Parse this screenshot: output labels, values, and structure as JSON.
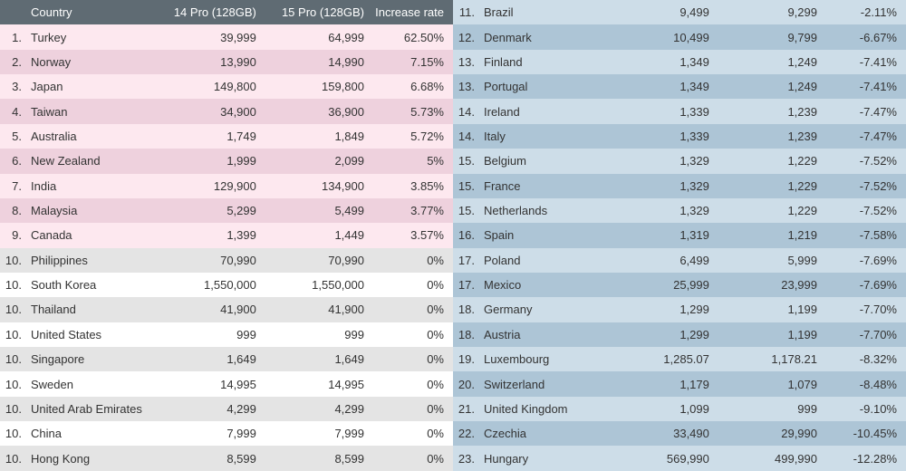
{
  "header": {
    "rank": "",
    "country": "Country",
    "p14": "14 Pro (128GB)",
    "p15": "15 Pro (128GB)",
    "rate": "Increase rate"
  },
  "colors": {
    "header_bg": "#5f6b73",
    "header_fg": "#ffffff",
    "pink_light": "#fde8ef",
    "pink_dark": "#eed1dd",
    "gray_light": "#ffffff",
    "gray_dark": "#e4e4e4",
    "blue_light": "#cddde8",
    "blue_dark": "#adc5d6",
    "text": "#333333"
  },
  "left": [
    {
      "rank": "1.",
      "country": "Turkey",
      "p14": "39,999",
      "p15": "64,999",
      "rate": "62.50%",
      "band": "pink"
    },
    {
      "rank": "2.",
      "country": "Norway",
      "p14": "13,990",
      "p15": "14,990",
      "rate": "7.15%",
      "band": "pink"
    },
    {
      "rank": "3.",
      "country": "Japan",
      "p14": "149,800",
      "p15": "159,800",
      "rate": "6.68%",
      "band": "pink"
    },
    {
      "rank": "4.",
      "country": "Taiwan",
      "p14": "34,900",
      "p15": "36,900",
      "rate": "5.73%",
      "band": "pink"
    },
    {
      "rank": "5.",
      "country": "Australia",
      "p14": "1,749",
      "p15": "1,849",
      "rate": "5.72%",
      "band": "pink"
    },
    {
      "rank": "6.",
      "country": "New Zealand",
      "p14": "1,999",
      "p15": "2,099",
      "rate": "5%",
      "band": "pink"
    },
    {
      "rank": "7.",
      "country": "India",
      "p14": "129,900",
      "p15": "134,900",
      "rate": "3.85%",
      "band": "pink"
    },
    {
      "rank": "8.",
      "country": "Malaysia",
      "p14": "5,299",
      "p15": "5,499",
      "rate": "3.77%",
      "band": "pink"
    },
    {
      "rank": "9.",
      "country": "Canada",
      "p14": "1,399",
      "p15": "1,449",
      "rate": "3.57%",
      "band": "pink"
    },
    {
      "rank": "10.",
      "country": "Philippines",
      "p14": "70,990",
      "p15": "70,990",
      "rate": "0%",
      "band": "gray"
    },
    {
      "rank": "10.",
      "country": "South Korea",
      "p14": "1,550,000",
      "p15": "1,550,000",
      "rate": "0%",
      "band": "gray"
    },
    {
      "rank": "10.",
      "country": "Thailand",
      "p14": "41,900",
      "p15": "41,900",
      "rate": "0%",
      "band": "gray"
    },
    {
      "rank": "10.",
      "country": "United States",
      "p14": "999",
      "p15": "999",
      "rate": "0%",
      "band": "gray"
    },
    {
      "rank": "10.",
      "country": "Singapore",
      "p14": "1,649",
      "p15": "1,649",
      "rate": "0%",
      "band": "gray"
    },
    {
      "rank": "10.",
      "country": "Sweden",
      "p14": "14,995",
      "p15": "14,995",
      "rate": "0%",
      "band": "gray"
    },
    {
      "rank": "10.",
      "country": "United Arab Emirates",
      "p14": "4,299",
      "p15": "4,299",
      "rate": "0%",
      "band": "gray"
    },
    {
      "rank": "10.",
      "country": "China",
      "p14": "7,999",
      "p15": "7,999",
      "rate": "0%",
      "band": "gray"
    },
    {
      "rank": "10.",
      "country": "Hong Kong",
      "p14": "8,599",
      "p15": "8,599",
      "rate": "0%",
      "band": "gray"
    }
  ],
  "right": [
    {
      "rank": "11.",
      "country": "Brazil",
      "p14": "9,499",
      "p15": "9,299",
      "rate": "-2.11%",
      "band": "blue"
    },
    {
      "rank": "12.",
      "country": "Denmark",
      "p14": "10,499",
      "p15": "9,799",
      "rate": "-6.67%",
      "band": "blue"
    },
    {
      "rank": "13.",
      "country": "Finland",
      "p14": "1,349",
      "p15": "1,249",
      "rate": "-7.41%",
      "band": "blue"
    },
    {
      "rank": "13.",
      "country": "Portugal",
      "p14": "1,349",
      "p15": "1,249",
      "rate": "-7.41%",
      "band": "blue"
    },
    {
      "rank": "14.",
      "country": "Ireland",
      "p14": "1,339",
      "p15": "1,239",
      "rate": "-7.47%",
      "band": "blue"
    },
    {
      "rank": "14.",
      "country": "Italy",
      "p14": "1,339",
      "p15": "1,239",
      "rate": "-7.47%",
      "band": "blue"
    },
    {
      "rank": "15.",
      "country": "Belgium",
      "p14": "1,329",
      "p15": "1,229",
      "rate": "-7.52%",
      "band": "blue"
    },
    {
      "rank": "15.",
      "country": "France",
      "p14": "1,329",
      "p15": "1,229",
      "rate": "-7.52%",
      "band": "blue"
    },
    {
      "rank": "15.",
      "country": "Netherlands",
      "p14": "1,329",
      "p15": "1,229",
      "rate": "-7.52%",
      "band": "blue"
    },
    {
      "rank": "16.",
      "country": "Spain",
      "p14": "1,319",
      "p15": "1,219",
      "rate": "-7.58%",
      "band": "blue"
    },
    {
      "rank": "17.",
      "country": "Poland",
      "p14": "6,499",
      "p15": "5,999",
      "rate": "-7.69%",
      "band": "blue"
    },
    {
      "rank": "17.",
      "country": "Mexico",
      "p14": "25,999",
      "p15": "23,999",
      "rate": "-7.69%",
      "band": "blue"
    },
    {
      "rank": "18.",
      "country": "Germany",
      "p14": "1,299",
      "p15": "1,199",
      "rate": "-7.70%",
      "band": "blue"
    },
    {
      "rank": "18.",
      "country": "Austria",
      "p14": "1,299",
      "p15": "1,199",
      "rate": "-7.70%",
      "band": "blue"
    },
    {
      "rank": "19.",
      "country": "Luxembourg",
      "p14": "1,285.07",
      "p15": "1,178.21",
      "rate": "-8.32%",
      "band": "blue"
    },
    {
      "rank": "20.",
      "country": "Switzerland",
      "p14": "1,179",
      "p15": "1,079",
      "rate": "-8.48%",
      "band": "blue"
    },
    {
      "rank": "21.",
      "country": "United Kingdom",
      "p14": "1,099",
      "p15": "999",
      "rate": "-9.10%",
      "band": "blue"
    },
    {
      "rank": "22.",
      "country": "Czechia",
      "p14": "33,490",
      "p15": "29,990",
      "rate": "-10.45%",
      "band": "blue"
    },
    {
      "rank": "23.",
      "country": "Hungary",
      "p14": "569,990",
      "p15": "499,990",
      "rate": "-12.28%",
      "band": "blue"
    }
  ]
}
